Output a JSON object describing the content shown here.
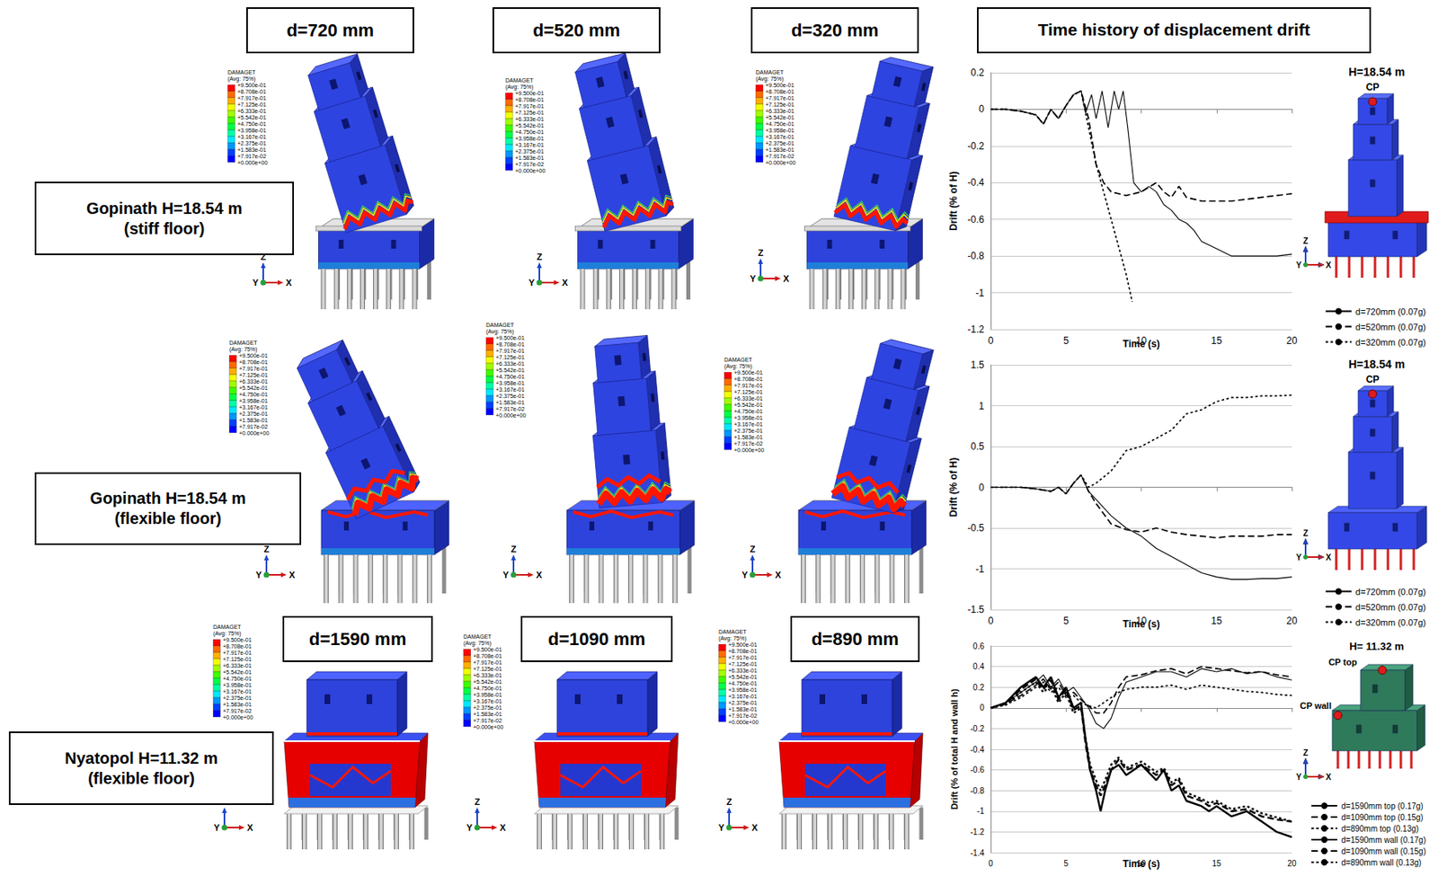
{
  "header": {
    "title": "Time history of displacement drift"
  },
  "models": {
    "columns_gopinath": [
      "d=720 mm",
      "d=520 mm",
      "d=320 mm"
    ],
    "columns_nyatopol": [
      "d=1590 mm",
      "d=1090 mm",
      "d=890 mm"
    ],
    "rows": [
      [
        "Gopinath H=18.54 m",
        "(stiff floor)"
      ],
      [
        "Gopinath H=18.54 m",
        "(flexible floor)"
      ],
      [
        "Nyatopol H=11.32 m",
        "(flexible floor)"
      ]
    ]
  },
  "contour_legend": {
    "title": "DAMAGET",
    "subtitle": "(Avg: 75%)",
    "levels": [
      "+9.500e-01",
      "+8.708e-01",
      "+7.917e-01",
      "+7.125e-01",
      "+6.333e-01",
      "+5.542e-01",
      "+4.750e-01",
      "+3.958e-01",
      "+3.167e-01",
      "+2.375e-01",
      "+1.583e-01",
      "+7.917e-02",
      "+0.000e+00"
    ],
    "colors": [
      "#ff0000",
      "#ff6a00",
      "#ffb000",
      "#f2ff00",
      "#a0ff00",
      "#3cff00",
      "#00ff46",
      "#00ffa8",
      "#00e8ff",
      "#0096ff",
      "#0040ff",
      "#0000ff"
    ]
  },
  "triad": {
    "z": "Z",
    "y": "Y",
    "x": "X"
  },
  "chart_data": [
    {
      "type": "line",
      "x_label": "Time (s)",
      "y_label": "Drift (% of H)",
      "xlim": [
        0,
        20
      ],
      "xticks": [
        0,
        5,
        10,
        15,
        20
      ],
      "ylim": [
        -1.2,
        0.2
      ],
      "yticks": [
        -1.2,
        -1,
        -0.8,
        -0.6,
        -0.4,
        -0.2,
        0,
        0.2
      ],
      "grid": "y",
      "legend": "right",
      "annotations": [
        "H=18.54 m",
        "CP"
      ],
      "series": [
        {
          "name": "d=720mm (0.07g)",
          "color": "#000000",
          "line_style": "solid",
          "x": [
            0,
            1,
            2,
            3,
            3.5,
            4,
            4.5,
            5,
            5.5,
            6,
            6.3,
            6.7,
            7,
            7.4,
            7.8,
            8.2,
            8.5,
            8.8,
            9.1,
            9.5,
            10,
            10.5,
            11,
            11.5,
            12,
            12.5,
            13,
            13.5,
            14,
            15,
            16,
            17,
            18,
            19,
            20
          ],
          "values": [
            0,
            0,
            -0.01,
            -0.03,
            -0.08,
            0,
            -0.05,
            0.02,
            0.08,
            0.1,
            -0.02,
            0.08,
            -0.05,
            0.1,
            -0.1,
            0.1,
            0,
            0.1,
            -0.1,
            -0.4,
            -0.45,
            -0.42,
            -0.45,
            -0.52,
            -0.55,
            -0.6,
            -0.62,
            -0.66,
            -0.72,
            -0.76,
            -0.8,
            -0.8,
            -0.8,
            -0.8,
            -0.79
          ]
        },
        {
          "name": "d=520mm (0.07g)",
          "color": "#000000",
          "line_style": "dashed",
          "x": [
            0,
            1,
            2,
            3,
            3.5,
            4,
            4.5,
            5,
            5.5,
            6,
            6.5,
            7,
            7.5,
            8,
            9,
            10,
            11,
            11.5,
            12,
            12.5,
            13,
            14,
            15,
            16,
            17,
            18,
            19,
            20
          ],
          "values": [
            0,
            0,
            -0.01,
            -0.03,
            -0.08,
            0,
            -0.05,
            0.02,
            0.08,
            0.1,
            -0.05,
            -0.3,
            -0.4,
            -0.45,
            -0.47,
            -0.45,
            -0.4,
            -0.45,
            -0.48,
            -0.42,
            -0.48,
            -0.5,
            -0.5,
            -0.5,
            -0.49,
            -0.48,
            -0.47,
            -0.46
          ]
        },
        {
          "name": "d=320mm (0.07g)",
          "color": "#000000",
          "line_style": "dotted",
          "x": [
            0,
            1,
            2,
            3,
            3.5,
            4,
            4.5,
            5,
            5.5,
            6,
            6.5,
            7,
            7.5,
            8,
            8.5,
            9,
            9.4
          ],
          "values": [
            0,
            0,
            -0.01,
            -0.03,
            -0.08,
            0,
            -0.05,
            0.02,
            0.08,
            0.1,
            -0.1,
            -0.3,
            -0.45,
            -0.6,
            -0.75,
            -0.9,
            -1.05
          ]
        }
      ]
    },
    {
      "type": "line",
      "x_label": "Time (s)",
      "y_label": "Drift (% of H)",
      "xlim": [
        0,
        20
      ],
      "xticks": [
        0,
        5,
        10,
        15,
        20
      ],
      "ylim": [
        -1.5,
        1.5
      ],
      "yticks": [
        -1.5,
        -1,
        -0.5,
        0,
        0.5,
        1,
        1.5
      ],
      "grid": "y",
      "legend": "right",
      "annotations": [
        "H=18.54 m",
        "CP"
      ],
      "series": [
        {
          "name": "d=720mm (0.07g)",
          "color": "#000000",
          "line_style": "solid",
          "x": [
            0,
            1,
            2,
            3,
            4,
            4.5,
            5,
            5.5,
            6,
            6.5,
            7,
            8,
            9,
            10,
            11,
            12,
            13,
            14,
            15,
            16,
            17,
            18,
            19,
            20
          ],
          "values": [
            0,
            0,
            0,
            -0.02,
            -0.05,
            0,
            -0.08,
            0.05,
            0.15,
            -0.05,
            -0.15,
            -0.35,
            -0.5,
            -0.6,
            -0.75,
            -0.85,
            -0.95,
            -1.05,
            -1.1,
            -1.13,
            -1.13,
            -1.12,
            -1.12,
            -1.1
          ]
        },
        {
          "name": "d=520mm (0.07g)",
          "color": "#000000",
          "line_style": "dashed",
          "x": [
            0,
            1,
            2,
            3,
            4,
            4.5,
            5,
            5.5,
            6,
            6.5,
            7,
            8,
            9,
            10,
            11,
            12,
            13,
            14,
            15,
            16,
            17,
            18,
            19,
            20
          ],
          "values": [
            0,
            0,
            0,
            -0.02,
            -0.05,
            0,
            -0.08,
            0.05,
            0.15,
            -0.05,
            -0.2,
            -0.45,
            -0.52,
            -0.55,
            -0.5,
            -0.55,
            -0.58,
            -0.6,
            -0.62,
            -0.6,
            -0.6,
            -0.6,
            -0.58,
            -0.58
          ]
        },
        {
          "name": "d=320mm (0.07g)",
          "color": "#000000",
          "line_style": "dotted",
          "x": [
            0,
            1,
            2,
            3,
            4,
            4.5,
            5,
            5.5,
            6,
            6.5,
            7,
            8,
            9,
            10,
            11,
            12,
            13,
            14,
            15,
            16,
            17,
            18,
            19,
            20
          ],
          "values": [
            0,
            0,
            0,
            -0.02,
            -0.05,
            0,
            -0.08,
            0.05,
            0.15,
            0,
            0.05,
            0.2,
            0.45,
            0.5,
            0.6,
            0.7,
            0.9,
            0.95,
            1.05,
            1.1,
            1.1,
            1.12,
            1.12,
            1.13
          ]
        }
      ]
    },
    {
      "type": "line",
      "x_label": "Time (s)",
      "y_label": "Drift (% of total H and wall h)",
      "xlim": [
        0,
        20
      ],
      "xticks": [
        0,
        5,
        10,
        15,
        20
      ],
      "ylim": [
        -1.4,
        0.6
      ],
      "yticks": [
        -1.4,
        -1.2,
        -1,
        -0.8,
        -0.6,
        -0.4,
        -0.2,
        0,
        0.2,
        0.4,
        0.6
      ],
      "grid": "y",
      "legend": "right",
      "annotations": [
        "H= 11.32 m",
        "CP top",
        "CP wall"
      ],
      "series": [
        {
          "name": "d=1590mm top (0.17g)",
          "color": "#000000",
          "line_style": "solid",
          "x": [
            0,
            1,
            2,
            3,
            3.5,
            4,
            4.5,
            5,
            5.5,
            6,
            6.5,
            7,
            7.5,
            8,
            8.5,
            9,
            10,
            11,
            12,
            13,
            14,
            15,
            16,
            17,
            18,
            19,
            20
          ],
          "values": [
            0,
            0.05,
            0.15,
            0.25,
            0.32,
            0.2,
            0.28,
            0.15,
            0.2,
            0.1,
            0,
            -0.15,
            -0.2,
            -0.1,
            0.1,
            0.25,
            0.3,
            0.35,
            0.35,
            0.3,
            0.38,
            0.35,
            0.38,
            0.33,
            0.35,
            0.3,
            0.27
          ]
        },
        {
          "name": "d=1090mm top (0.15g)",
          "color": "#000000",
          "line_style": "dashed",
          "x": [
            0,
            1,
            2,
            3,
            3.5,
            4,
            4.5,
            5,
            5.5,
            6,
            6.5,
            7,
            7.5,
            8,
            8.5,
            9,
            10,
            11,
            12,
            13,
            14,
            15,
            16,
            17,
            18,
            19,
            20
          ],
          "values": [
            0,
            0.04,
            0.12,
            0.22,
            0.28,
            0.18,
            0.25,
            0.12,
            0.15,
            0.08,
            0.02,
            -0.05,
            -0.05,
            0.05,
            0.2,
            0.3,
            0.32,
            0.36,
            0.38,
            0.33,
            0.4,
            0.38,
            0.36,
            0.34,
            0.35,
            0.32,
            0.3
          ]
        },
        {
          "name": "d=890mm top (0.13g)",
          "color": "#000000",
          "line_style": "dotted",
          "x": [
            0,
            1,
            2,
            3,
            3.5,
            4,
            4.5,
            5,
            5.5,
            6,
            6.5,
            7,
            7.5,
            8,
            8.5,
            9,
            10,
            11,
            12,
            13,
            14,
            15,
            16,
            17,
            18,
            19,
            20
          ],
          "values": [
            0,
            0.03,
            0.1,
            0.2,
            0.25,
            0.15,
            0.2,
            0.1,
            0.12,
            0.05,
            0.02,
            0,
            0.05,
            0.1,
            0.15,
            0.18,
            0.2,
            0.2,
            0.22,
            0.18,
            0.22,
            0.2,
            0.18,
            0.16,
            0.15,
            0.13,
            0.12
          ]
        },
        {
          "name": "d=1590mm wall (0.17g)",
          "color": "#000000",
          "line_style": "thick solid",
          "x": [
            0,
            1,
            2,
            3,
            3.5,
            4,
            4.5,
            5,
            5.5,
            6,
            6.3,
            6.6,
            7,
            7.3,
            7.6,
            8,
            8.5,
            9,
            10,
            11,
            11.5,
            12,
            12.5,
            13,
            14,
            14.5,
            15,
            16,
            17,
            18,
            19,
            20
          ],
          "values": [
            0,
            0.05,
            0.2,
            0.3,
            0.2,
            0.3,
            0.1,
            0.2,
            0,
            0.05,
            -0.3,
            -0.6,
            -0.8,
            -1,
            -0.8,
            -0.6,
            -0.55,
            -0.65,
            -0.55,
            -0.7,
            -0.6,
            -0.8,
            -0.75,
            -0.9,
            -0.95,
            -1,
            -0.95,
            -1.05,
            -1,
            -1.1,
            -1.2,
            -1.25
          ]
        },
        {
          "name": "d=1090mm wall (0.15g)",
          "color": "#000000",
          "line_style": "thick dashed",
          "x": [
            0,
            1,
            2,
            3,
            3.5,
            4,
            4.5,
            5,
            5.5,
            6,
            6.3,
            6.6,
            7,
            7.3,
            7.6,
            8,
            8.5,
            9,
            10,
            11,
            11.5,
            12,
            12.5,
            13,
            14,
            14.5,
            15,
            16,
            17,
            18,
            19,
            20
          ],
          "values": [
            0,
            0.04,
            0.18,
            0.28,
            0.18,
            0.27,
            0.08,
            0.18,
            -0.02,
            0.02,
            -0.35,
            -0.6,
            -0.75,
            -0.85,
            -0.75,
            -0.6,
            -0.5,
            -0.6,
            -0.55,
            -0.65,
            -0.6,
            -0.75,
            -0.7,
            -0.85,
            -0.9,
            -0.95,
            -0.92,
            -1,
            -0.98,
            -1.05,
            -1.08,
            -1.1
          ]
        },
        {
          "name": "d=890mm wall (0.13g)",
          "color": "#000000",
          "line_style": "thick dotted",
          "x": [
            0,
            1,
            2,
            3,
            3.5,
            4,
            4.5,
            5,
            5.5,
            6,
            6.3,
            6.6,
            7,
            7.3,
            7.6,
            8,
            8.5,
            9,
            10,
            11,
            11.5,
            12,
            12.5,
            13,
            14,
            14.5,
            15,
            16,
            17,
            18,
            19,
            20
          ],
          "values": [
            0,
            0.03,
            0.15,
            0.25,
            0.15,
            0.22,
            0.05,
            0.15,
            -0.05,
            0,
            -0.3,
            -0.55,
            -0.7,
            -0.8,
            -0.7,
            -0.55,
            -0.48,
            -0.58,
            -0.52,
            -0.62,
            -0.58,
            -0.72,
            -0.68,
            -0.82,
            -0.88,
            -0.92,
            -0.9,
            -0.98,
            -0.95,
            -1.02,
            -1.06,
            -1.1
          ]
        }
      ]
    }
  ]
}
